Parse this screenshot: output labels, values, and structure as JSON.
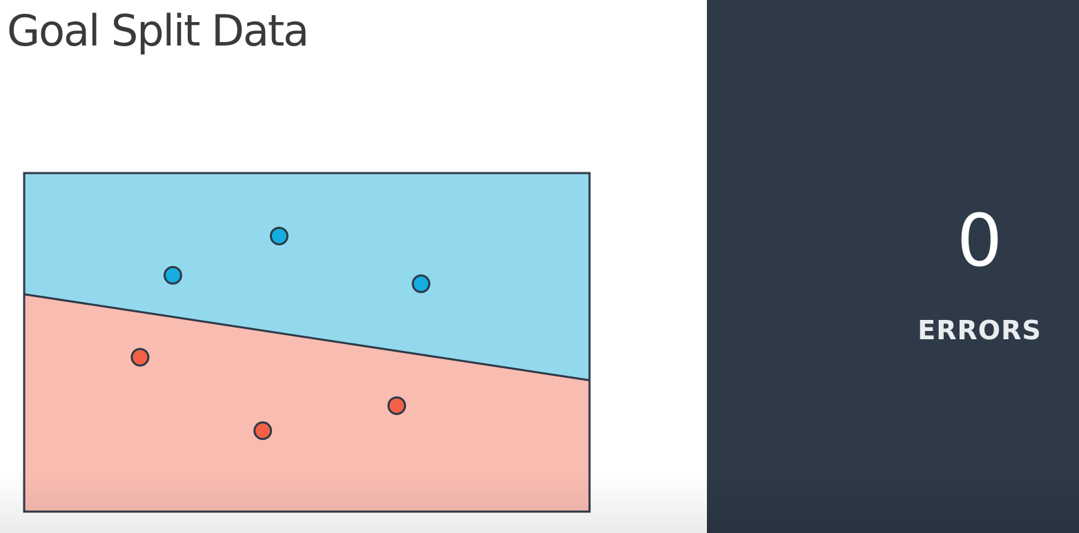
{
  "title": "Goal Split Data",
  "errors": {
    "count": "0",
    "label": "ERRORS"
  },
  "colors": {
    "blue_region": "#93d9ed",
    "red_region": "#f9bcb1",
    "blue_point": "#16ade0",
    "red_point": "#f26147",
    "outline": "#2e3a48",
    "panel": "#2e3a48"
  },
  "chart_data": {
    "type": "scatter",
    "xlim": [
      0,
      100
    ],
    "ylim": [
      0,
      100
    ],
    "boundary": {
      "x": [
        0,
        100
      ],
      "y": [
        64.2,
        38.8
      ]
    },
    "series": [
      {
        "class": "blue",
        "points": [
          {
            "x": 26.3,
            "y": 69.8
          },
          {
            "x": 45.1,
            "y": 81.4
          },
          {
            "x": 70.2,
            "y": 67.3
          }
        ]
      },
      {
        "class": "red",
        "points": [
          {
            "x": 20.5,
            "y": 45.6
          },
          {
            "x": 65.9,
            "y": 31.3
          },
          {
            "x": 42.2,
            "y": 23.9
          }
        ]
      }
    ]
  }
}
